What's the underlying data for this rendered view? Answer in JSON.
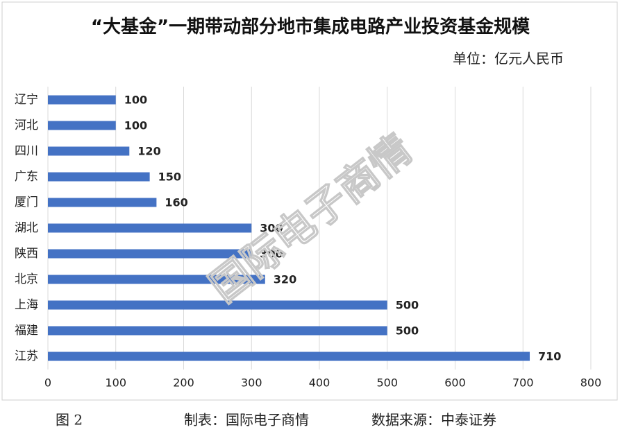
{
  "chart_data": {
    "type": "hbar",
    "title": "“大基金”一期带动部分地市集成电路产业投资基金规模",
    "unit": "单位：亿元人民币",
    "watermark": "国际电子商情",
    "categories": [
      "辽宁",
      "河北",
      "四川",
      "广东",
      "厦门",
      "湖北",
      "陕西",
      "北京",
      "上海",
      "福建",
      "江苏"
    ],
    "values": [
      100,
      100,
      120,
      150,
      160,
      300,
      300,
      320,
      500,
      500,
      710
    ],
    "color": "#4472c4",
    "xlim": [
      0,
      800
    ],
    "xticks": [
      0,
      100,
      200,
      300,
      400,
      500,
      600,
      700,
      800
    ],
    "grid": true
  },
  "footer": {
    "figure": "图 2",
    "maker": "制表：国际电子商情",
    "source": "数据来源：中泰证券"
  }
}
